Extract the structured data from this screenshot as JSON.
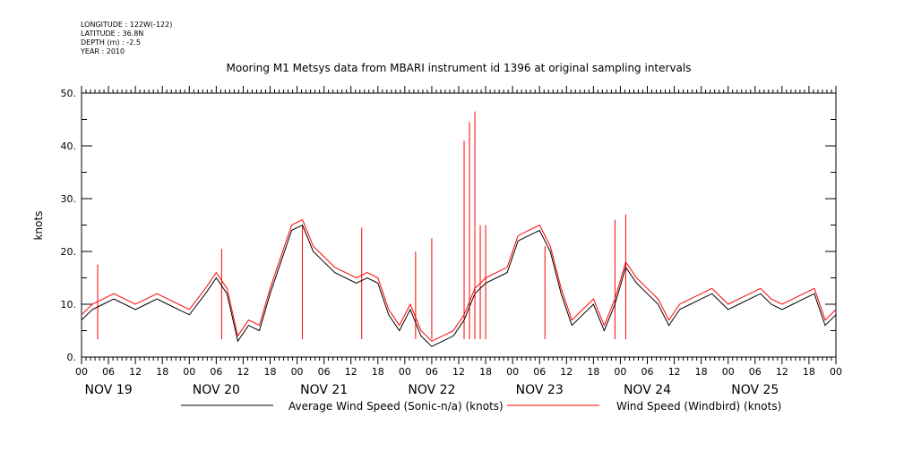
{
  "header": {
    "longitude": "LONGITUDE : 122W(-122)",
    "latitude": "LATITUDE : 36.8N",
    "depth": "DEPTH (m) : -2.5",
    "year": "YEAR : 2010"
  },
  "chart_data": {
    "type": "line",
    "title": "Mooring M1 Metsys data from MBARI instrument id 1396 at original sampling intervals",
    "xlabel": "",
    "ylabel": "knots",
    "ylim": [
      0,
      50
    ],
    "y_ticks": [
      0,
      10,
      20,
      30,
      40,
      50
    ],
    "y_tick_labels": [
      "0.",
      "10.",
      "20.",
      "30.",
      "40.",
      "50."
    ],
    "xlim_days": [
      19,
      26
    ],
    "x_hour_labels": [
      "00",
      "06",
      "12",
      "18",
      "00",
      "06",
      "12",
      "18",
      "00",
      "06",
      "12",
      "18",
      "00",
      "06",
      "12",
      "18",
      "00",
      "06",
      "12",
      "18",
      "00",
      "06",
      "12",
      "18",
      "00",
      "06",
      "12",
      "18",
      "00"
    ],
    "x_day_labels": [
      "NOV 19",
      "NOV 20",
      "NOV 21",
      "NOV 22",
      "NOV 23",
      "NOV 24",
      "NOV 25"
    ],
    "grid": false,
    "legend_position": "bottom",
    "series": [
      {
        "name": "Average Wind Speed (Sonic-n/a) (knots)",
        "color": "#000000",
        "x_day": [
          19.0,
          19.1,
          19.2,
          19.3,
          19.4,
          19.5,
          19.6,
          19.7,
          19.8,
          19.9,
          20.0,
          20.15,
          20.25,
          20.35,
          20.45,
          20.55,
          20.65,
          20.75,
          20.85,
          20.95,
          21.05,
          21.15,
          21.25,
          21.35,
          21.45,
          21.55,
          21.65,
          21.75,
          21.85,
          21.95,
          22.05,
          22.15,
          22.25,
          22.35,
          22.45,
          22.55,
          22.65,
          22.75,
          22.85,
          22.95,
          23.05,
          23.15,
          23.25,
          23.35,
          23.45,
          23.55,
          23.65,
          23.75,
          23.85,
          23.95,
          24.05,
          24.15,
          24.25,
          24.35,
          24.45,
          24.55,
          24.65,
          24.75,
          24.85,
          24.95,
          25.0,
          25.1,
          25.2,
          25.3,
          25.4,
          25.5,
          25.6,
          25.7,
          25.8,
          25.9,
          26.0
        ],
        "y": [
          7,
          9,
          10,
          11,
          10,
          9,
          10,
          11,
          10,
          9,
          8,
          12,
          15,
          12,
          3,
          6,
          5,
          12,
          18,
          24,
          25,
          20,
          18,
          16,
          15,
          14,
          15,
          14,
          8,
          5,
          9,
          4,
          2,
          3,
          4,
          7,
          12,
          14,
          15,
          16,
          22,
          23,
          24,
          20,
          12,
          6,
          8,
          10,
          5,
          10,
          17,
          14,
          12,
          10,
          6,
          9,
          10,
          11,
          12,
          10,
          9,
          10,
          11,
          12,
          10,
          9,
          10,
          11,
          12,
          6,
          8
        ]
      },
      {
        "name": "Wind Speed (Windbird) (knots)",
        "color": "#ff0000",
        "x_day": [
          19.0,
          19.1,
          19.2,
          19.3,
          19.4,
          19.5,
          19.6,
          19.7,
          19.8,
          19.9,
          20.0,
          20.15,
          20.25,
          20.35,
          20.45,
          20.55,
          20.65,
          20.75,
          20.85,
          20.95,
          21.05,
          21.15,
          21.25,
          21.35,
          21.45,
          21.55,
          21.65,
          21.75,
          21.85,
          21.95,
          22.05,
          22.15,
          22.25,
          22.35,
          22.45,
          22.55,
          22.65,
          22.75,
          22.85,
          22.95,
          23.05,
          23.15,
          23.25,
          23.35,
          23.45,
          23.55,
          23.65,
          23.75,
          23.85,
          23.95,
          24.05,
          24.15,
          24.25,
          24.35,
          24.45,
          24.55,
          24.65,
          24.75,
          24.85,
          24.95,
          25.0,
          25.1,
          25.2,
          25.3,
          25.4,
          25.5,
          25.6,
          25.7,
          25.8,
          25.9,
          26.0
        ],
        "y": [
          8,
          10,
          11,
          12,
          11,
          10,
          11,
          12,
          11,
          10,
          9,
          13,
          16,
          13,
          4,
          7,
          6,
          13,
          19,
          25,
          26,
          21,
          19,
          17,
          16,
          15,
          16,
          15,
          9,
          6,
          10,
          5,
          3,
          4,
          5,
          8,
          13,
          15,
          16,
          17,
          23,
          24,
          25,
          21,
          13,
          7,
          9,
          11,
          6,
          11,
          18,
          15,
          13,
          11,
          7,
          10,
          11,
          12,
          13,
          11,
          10,
          11,
          12,
          13,
          11,
          10,
          11,
          12,
          13,
          7,
          9
        ],
        "spikes": [
          {
            "x_day": 19.15,
            "y": 17.5
          },
          {
            "x_day": 20.3,
            "y": 20.5
          },
          {
            "x_day": 21.05,
            "y": 25
          },
          {
            "x_day": 21.6,
            "y": 24.5
          },
          {
            "x_day": 22.1,
            "y": 20
          },
          {
            "x_day": 22.25,
            "y": 22.5
          },
          {
            "x_day": 22.55,
            "y": 41
          },
          {
            "x_day": 22.6,
            "y": 44.5
          },
          {
            "x_day": 22.65,
            "y": 46.5
          },
          {
            "x_day": 22.7,
            "y": 25
          },
          {
            "x_day": 22.75,
            "y": 25
          },
          {
            "x_day": 23.3,
            "y": 21
          },
          {
            "x_day": 23.95,
            "y": 26
          },
          {
            "x_day": 24.05,
            "y": 27
          }
        ]
      }
    ]
  }
}
